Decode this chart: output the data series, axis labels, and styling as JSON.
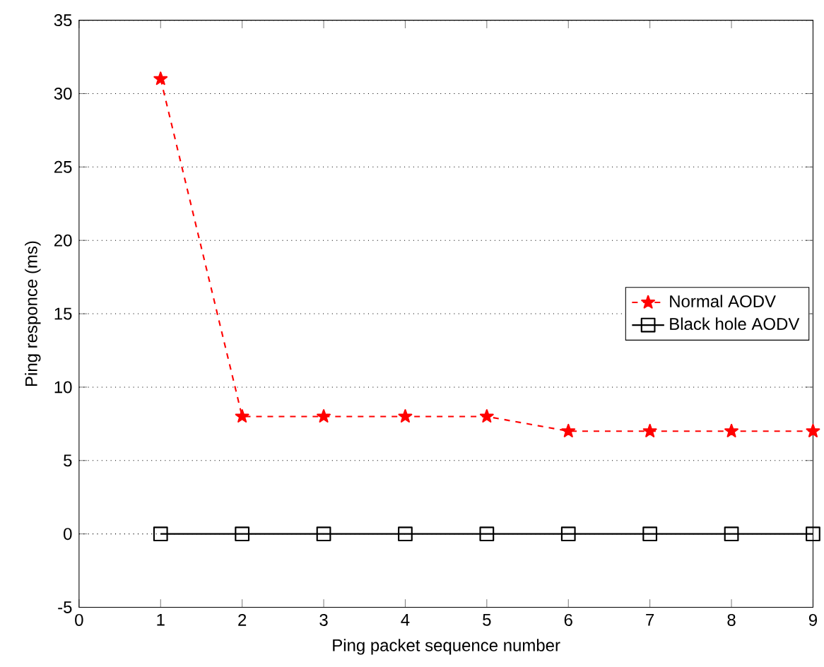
{
  "chart_data": {
    "type": "line",
    "xlabel": "Ping packet sequence number",
    "ylabel": "Ping responce (ms)",
    "x": [
      1,
      2,
      3,
      4,
      5,
      6,
      7,
      8,
      9
    ],
    "series": [
      {
        "name": "Normal AODV",
        "color": "#ff0000",
        "marker": "star",
        "line_style": "dashed",
        "values": [
          31,
          8,
          8,
          8,
          8,
          7,
          7,
          7,
          7
        ]
      },
      {
        "name": "Black hole AODV",
        "color": "#000000",
        "marker": "square",
        "line_style": "solid",
        "values": [
          0,
          0,
          0,
          0,
          0,
          0,
          0,
          0,
          0
        ]
      }
    ],
    "xlim": [
      0,
      9
    ],
    "xticks": [
      0,
      1,
      2,
      3,
      4,
      5,
      6,
      7,
      8,
      9
    ],
    "ylim": [
      -5,
      35
    ],
    "yticks": [
      -5,
      0,
      5,
      10,
      15,
      20,
      25,
      30,
      35
    ],
    "grid": "y",
    "legend": "right"
  }
}
